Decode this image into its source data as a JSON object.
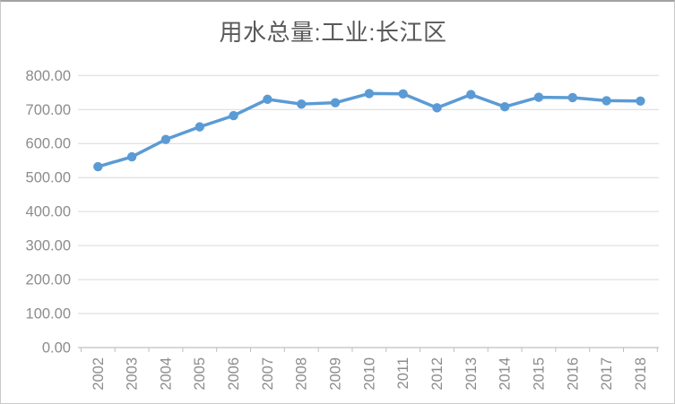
{
  "chart_data": {
    "type": "line",
    "title": "用水总量:工业:长江区",
    "categories": [
      "2002",
      "2003",
      "2004",
      "2005",
      "2006",
      "2007",
      "2008",
      "2009",
      "2010",
      "2011",
      "2012",
      "2013",
      "2014",
      "2015",
      "2016",
      "2017",
      "2018"
    ],
    "series": [
      {
        "name": "用水总量:工业:长江区",
        "values": [
          532,
          561,
          612,
          649,
          682,
          730,
          716,
          720,
          747,
          746,
          705,
          744,
          708,
          736,
          735,
          726,
          725
        ]
      }
    ],
    "xlabel": "",
    "ylabel": "",
    "ylim": [
      0,
      800
    ],
    "ytick_step": 100,
    "ytick_labels": [
      "0.00",
      "100.00",
      "200.00",
      "300.00",
      "400.00",
      "500.00",
      "600.00",
      "700.00",
      "800.00"
    ],
    "xtick_rotation_deg": -90,
    "grid": "horizontal",
    "legend_position": "none",
    "colors": {
      "series_line": "#5B9BD5",
      "marker_fill": "#5B9BD5",
      "gridline": "#D9D9D9",
      "axis_line": "#BFBFBF",
      "tick_label_text": "#8C8C8C",
      "title_text": "#595959",
      "background": "#FFFFFF",
      "canvas_border": "#C9C9C9"
    }
  }
}
